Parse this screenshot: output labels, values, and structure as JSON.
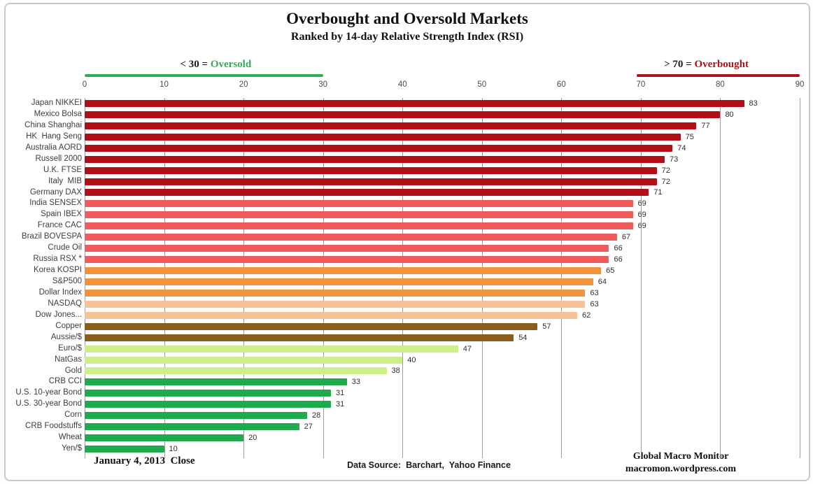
{
  "chart_data": {
    "type": "bar",
    "orientation": "horizontal",
    "title": "Overbought and Oversold Markets",
    "subtitle": "Ranked by 14-day Relative Strength Index (RSI)",
    "xlim": [
      0,
      90
    ],
    "xticks": [
      0,
      10,
      20,
      30,
      40,
      50,
      60,
      70,
      80,
      90
    ],
    "grid": "vertical",
    "legend_position": "none",
    "zones": [
      {
        "id": "oversold",
        "prefix": "< 30 = ",
        "word": "Oversold",
        "color": "#2fad57",
        "from": 0,
        "to": 30
      },
      {
        "id": "overbought",
        "prefix": "> 70 = ",
        "word": "Overbought",
        "color": "#b0101a",
        "from": 69.5,
        "to": 90
      }
    ],
    "palette": {
      "dark_red": "#b0101a",
      "salmon": "#f05c5c",
      "orange": "#f0923e",
      "peach": "#f6c296",
      "brown": "#8a5c1e",
      "light_green": "#cdef8a",
      "green": "#21a94d"
    },
    "rows": [
      {
        "label": "Japan NIKKEI",
        "value": 83,
        "color": "dark_red"
      },
      {
        "label": "Mexico Bolsa",
        "value": 80,
        "color": "dark_red"
      },
      {
        "label": "China Shanghai",
        "value": 77,
        "color": "dark_red"
      },
      {
        "label": "HK  Hang Seng",
        "value": 75,
        "color": "dark_red"
      },
      {
        "label": "Australia AORD",
        "value": 74,
        "color": "dark_red"
      },
      {
        "label": "Russell 2000",
        "value": 73,
        "color": "dark_red"
      },
      {
        "label": "U.K. FTSE",
        "value": 72,
        "color": "dark_red"
      },
      {
        "label": "Italy  MIB",
        "value": 72,
        "color": "dark_red"
      },
      {
        "label": "Germany DAX",
        "value": 71,
        "color": "dark_red"
      },
      {
        "label": "India SENSEX",
        "value": 69,
        "color": "salmon"
      },
      {
        "label": "Spain IBEX",
        "value": 69,
        "color": "salmon"
      },
      {
        "label": "France CAC",
        "value": 69,
        "color": "salmon"
      },
      {
        "label": "Brazil BOVESPA",
        "value": 67,
        "color": "salmon"
      },
      {
        "label": "Crude Oil",
        "value": 66,
        "color": "salmon"
      },
      {
        "label": "Russia RSX *",
        "value": 66,
        "color": "salmon"
      },
      {
        "label": "Korea KOSPI",
        "value": 65,
        "color": "orange"
      },
      {
        "label": "S&P500",
        "value": 64,
        "color": "orange"
      },
      {
        "label": "Dollar Index",
        "value": 63,
        "color": "orange"
      },
      {
        "label": "NASDAQ",
        "value": 63,
        "color": "peach"
      },
      {
        "label": "Dow Jones...",
        "value": 62,
        "color": "peach"
      },
      {
        "label": "Copper",
        "value": 57,
        "color": "brown"
      },
      {
        "label": "Aussie/$",
        "value": 54,
        "color": "brown"
      },
      {
        "label": "Euro/$",
        "value": 47,
        "color": "light_green"
      },
      {
        "label": "NatGas",
        "value": 40,
        "color": "light_green"
      },
      {
        "label": "Gold",
        "value": 38,
        "color": "light_green"
      },
      {
        "label": "CRB CCI",
        "value": 33,
        "color": "green"
      },
      {
        "label": "U.S. 10-year Bond",
        "value": 31,
        "color": "green"
      },
      {
        "label": "U.S. 30-year Bond",
        "value": 31,
        "color": "green"
      },
      {
        "label": "Corn",
        "value": 28,
        "color": "green"
      },
      {
        "label": "CRB Foodstuffs",
        "value": 27,
        "color": "green"
      },
      {
        "label": "Wheat",
        "value": 20,
        "color": "green"
      },
      {
        "label": "Yen/$",
        "value": 10,
        "color": "green"
      }
    ]
  },
  "footer": {
    "date_label": "January 4, 2013  Close",
    "data_source": "Data Source:  Barchart,  Yahoo Finance",
    "brand_line1": "Global Macro Monitor",
    "brand_line2": "macromon.wordpress.com"
  }
}
